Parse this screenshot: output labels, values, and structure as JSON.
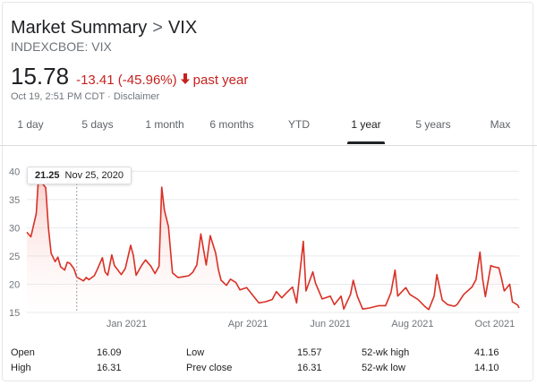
{
  "header": {
    "breadcrumb_root": "Market Summary",
    "breadcrumb_sep": ">",
    "breadcrumb_current": "VIX",
    "ticker": "INDEXCBOE: VIX",
    "price": "15.78",
    "change": "-13.41 (-45.96%)",
    "change_arrow_icon": "arrow-down-icon",
    "period": "past year",
    "timestamp": "Oct 19, 2:51 PM CDT",
    "meta_sep": "·",
    "disclaimer": "Disclaimer",
    "negative_color": "#c5221f"
  },
  "tabs": [
    {
      "label": "1 day"
    },
    {
      "label": "5 days"
    },
    {
      "label": "1 month"
    },
    {
      "label": "6 months"
    },
    {
      "label": "YTD"
    },
    {
      "label": "1 year",
      "active": true
    },
    {
      "label": "5 years"
    },
    {
      "label": "Max"
    }
  ],
  "tooltip": {
    "value": "21.25",
    "date": "Nov 25, 2020"
  },
  "chart_data": {
    "type": "area",
    "title": "",
    "xlabel": "",
    "ylabel": "",
    "ylim": [
      15,
      41
    ],
    "y_ticks": [
      "40",
      "35",
      "30",
      "25",
      "20",
      "15"
    ],
    "x_ticks": [
      "Jan 2021",
      "Apr 2021",
      "Jun 2021",
      "Aug 2021",
      "Oct 2021"
    ],
    "grid": true,
    "line_color": "#d93025",
    "fill_color": "#fce8e6",
    "x_range": [
      "2020-10-19",
      "2021-10-19"
    ],
    "x_tick_dates": [
      "2021-01-01",
      "2021-04-01",
      "2021-06-01",
      "2021-08-01",
      "2021-10-01"
    ],
    "points": [
      [
        "2020-10-19",
        29.2
      ],
      [
        "2020-10-22",
        28.4
      ],
      [
        "2020-10-26",
        32.5
      ],
      [
        "2020-10-28",
        40.3
      ],
      [
        "2020-10-30",
        38.0
      ],
      [
        "2020-11-02",
        37.1
      ],
      [
        "2020-11-04",
        30.0
      ],
      [
        "2020-11-06",
        25.5
      ],
      [
        "2020-11-09",
        24.0
      ],
      [
        "2020-11-11",
        24.8
      ],
      [
        "2020-11-13",
        23.1
      ],
      [
        "2020-11-16",
        22.5
      ],
      [
        "2020-11-18",
        23.9
      ],
      [
        "2020-11-20",
        23.7
      ],
      [
        "2020-11-23",
        22.7
      ],
      [
        "2020-11-25",
        21.25
      ],
      [
        "2020-11-30",
        20.6
      ],
      [
        "2020-12-02",
        21.2
      ],
      [
        "2020-12-04",
        20.8
      ],
      [
        "2020-12-08",
        21.5
      ],
      [
        "2020-12-10",
        22.5
      ],
      [
        "2020-12-14",
        24.7
      ],
      [
        "2020-12-16",
        22.2
      ],
      [
        "2020-12-18",
        21.6
      ],
      [
        "2020-12-21",
        25.2
      ],
      [
        "2020-12-23",
        23.3
      ],
      [
        "2020-12-28",
        21.7
      ],
      [
        "2020-12-31",
        22.8
      ],
      [
        "2021-01-04",
        26.9
      ],
      [
        "2021-01-06",
        25.1
      ],
      [
        "2021-01-08",
        21.6
      ],
      [
        "2021-01-12",
        23.3
      ],
      [
        "2021-01-15",
        24.3
      ],
      [
        "2021-01-19",
        23.2
      ],
      [
        "2021-01-22",
        21.9
      ],
      [
        "2021-01-25",
        23.2
      ],
      [
        "2021-01-27",
        37.2
      ],
      [
        "2021-01-29",
        33.1
      ],
      [
        "2021-02-01",
        30.2
      ],
      [
        "2021-02-04",
        22.0
      ],
      [
        "2021-02-08",
        21.2
      ],
      [
        "2021-02-11",
        21.3
      ],
      [
        "2021-02-16",
        21.5
      ],
      [
        "2021-02-19",
        22.1
      ],
      [
        "2021-02-22",
        23.4
      ],
      [
        "2021-02-25",
        28.9
      ],
      [
        "2021-03-01",
        23.4
      ],
      [
        "2021-03-04",
        28.6
      ],
      [
        "2021-03-08",
        25.5
      ],
      [
        "2021-03-10",
        22.6
      ],
      [
        "2021-03-12",
        20.7
      ],
      [
        "2021-03-16",
        19.8
      ],
      [
        "2021-03-19",
        20.9
      ],
      [
        "2021-03-23",
        20.3
      ],
      [
        "2021-03-26",
        19.0
      ],
      [
        "2021-03-31",
        19.4
      ],
      [
        "2021-04-05",
        17.9
      ],
      [
        "2021-04-09",
        16.7
      ],
      [
        "2021-04-14",
        16.9
      ],
      [
        "2021-04-19",
        17.3
      ],
      [
        "2021-04-22",
        18.7
      ],
      [
        "2021-04-26",
        17.6
      ],
      [
        "2021-04-30",
        18.6
      ],
      [
        "2021-05-04",
        19.5
      ],
      [
        "2021-05-07",
        16.7
      ],
      [
        "2021-05-12",
        27.6
      ],
      [
        "2021-05-14",
        18.8
      ],
      [
        "2021-05-19",
        22.2
      ],
      [
        "2021-05-21",
        20.2
      ],
      [
        "2021-05-26",
        17.4
      ],
      [
        "2021-06-01",
        17.9
      ],
      [
        "2021-06-04",
        16.4
      ],
      [
        "2021-06-09",
        17.9
      ],
      [
        "2021-06-11",
        15.6
      ],
      [
        "2021-06-16",
        18.2
      ],
      [
        "2021-06-18",
        20.7
      ],
      [
        "2021-06-21",
        17.9
      ],
      [
        "2021-06-25",
        15.6
      ],
      [
        "2021-06-30",
        15.8
      ],
      [
        "2021-07-07",
        16.2
      ],
      [
        "2021-07-12",
        16.2
      ],
      [
        "2021-07-16",
        18.5
      ],
      [
        "2021-07-19",
        22.5
      ],
      [
        "2021-07-21",
        17.9
      ],
      [
        "2021-07-27",
        19.4
      ],
      [
        "2021-07-30",
        18.2
      ],
      [
        "2021-08-05",
        17.3
      ],
      [
        "2021-08-10",
        16.1
      ],
      [
        "2021-08-13",
        15.5
      ],
      [
        "2021-08-17",
        17.9
      ],
      [
        "2021-08-19",
        21.7
      ],
      [
        "2021-08-23",
        17.2
      ],
      [
        "2021-08-27",
        16.4
      ],
      [
        "2021-09-01",
        16.1
      ],
      [
        "2021-09-03",
        16.4
      ],
      [
        "2021-09-08",
        18.2
      ],
      [
        "2021-09-14",
        19.5
      ],
      [
        "2021-09-17",
        20.8
      ],
      [
        "2021-09-20",
        25.7
      ],
      [
        "2021-09-22",
        20.9
      ],
      [
        "2021-09-24",
        17.8
      ],
      [
        "2021-09-28",
        23.3
      ],
      [
        "2021-09-30",
        23.1
      ],
      [
        "2021-10-04",
        22.9
      ],
      [
        "2021-10-06",
        21.0
      ],
      [
        "2021-10-08",
        18.8
      ],
      [
        "2021-10-12",
        20.0
      ],
      [
        "2021-10-14",
        16.9
      ],
      [
        "2021-10-18",
        16.3
      ],
      [
        "2021-10-19",
        15.78
      ]
    ]
  },
  "stats": [
    {
      "label": "Open",
      "value": "16.09"
    },
    {
      "label": "High",
      "value": "16.31"
    },
    {
      "label": "Low",
      "value": "15.57"
    },
    {
      "label": "Prev close",
      "value": "16.31"
    },
    {
      "label": "52-wk high",
      "value": "41.16"
    },
    {
      "label": "52-wk low",
      "value": "14.10"
    }
  ]
}
